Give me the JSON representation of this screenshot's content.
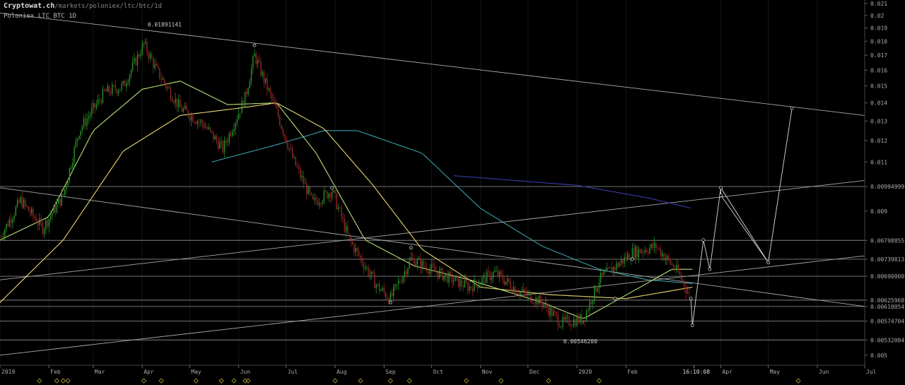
{
  "header": {
    "brand": "Cryptowat.ch",
    "path": "/markets/poloniex/ltc/btc/1d",
    "market": "Poloniex LTC BTC 1D"
  },
  "colors": {
    "up": "#2a9a2a",
    "down": "#9a2a2a",
    "ema_fast": "#b8e27a",
    "ema_mid": "#e8d870",
    "ema_slow": "#3aa0a8",
    "ema_long": "#3a3ab0",
    "drawing": "#c8c8c8",
    "axis_text": "#aaaaaa"
  },
  "chart_data": {
    "type": "candlestick",
    "scale": "log",
    "ylim": [
      0.0048,
      0.0213
    ],
    "x_range": [
      "2019-01-01",
      "2020-07-01"
    ],
    "y_ticks": [
      "0.021",
      "0.02",
      "0.019",
      "0.018",
      "0.017",
      "0.016",
      "0.015",
      "0.014",
      "0.013",
      "0.012",
      "0.011",
      "0.00994999",
      "0.009",
      "0.00798855",
      "0.00739813",
      "0.00690000",
      "0.00625968",
      "0.00610054",
      "0.00574704",
      "0.00532084",
      "0.005"
    ],
    "x_ticks": [
      {
        "label": "2019",
        "date": "2019-01-01"
      },
      {
        "label": "Feb",
        "date": "2019-02-01"
      },
      {
        "label": "Mar",
        "date": "2019-03-01"
      },
      {
        "label": "Apr",
        "date": "2019-04-01"
      },
      {
        "label": "May",
        "date": "2019-05-01"
      },
      {
        "label": "Jun",
        "date": "2019-06-01"
      },
      {
        "label": "Jul",
        "date": "2019-07-01"
      },
      {
        "label": "Aug",
        "date": "2019-08-01"
      },
      {
        "label": "Sep",
        "date": "2019-09-01"
      },
      {
        "label": "Oct",
        "date": "2019-10-01"
      },
      {
        "label": "Nov",
        "date": "2019-11-01"
      },
      {
        "label": "Dec",
        "date": "2019-12-01"
      },
      {
        "label": "2020",
        "date": "2020-01-01"
      },
      {
        "label": "Feb",
        "date": "2020-02-01"
      },
      {
        "label": "Apr",
        "date": "2020-04-01"
      },
      {
        "label": "May",
        "date": "2020-05-01"
      },
      {
        "label": "Jun",
        "date": "2020-06-01"
      },
      {
        "label": "Jul",
        "date": "2020-07-01"
      }
    ],
    "cursor_time": {
      "label": "16:10:08",
      "date": "2020-03-15"
    },
    "price_anchors": [
      {
        "date": "2019-01-01",
        "price": 0.0081
      },
      {
        "date": "2019-01-14",
        "price": 0.0094
      },
      {
        "date": "2019-01-28",
        "price": 0.0084
      },
      {
        "date": "2019-02-10",
        "price": 0.0096
      },
      {
        "date": "2019-02-20",
        "price": 0.0125
      },
      {
        "date": "2019-03-08",
        "price": 0.0146
      },
      {
        "date": "2019-03-20",
        "price": 0.015
      },
      {
        "date": "2019-04-02",
        "price": 0.0178
      },
      {
        "date": "2019-04-10",
        "price": 0.016
      },
      {
        "date": "2019-04-25",
        "price": 0.0137
      },
      {
        "date": "2019-05-10",
        "price": 0.0128
      },
      {
        "date": "2019-05-22",
        "price": 0.0116
      },
      {
        "date": "2019-06-05",
        "price": 0.0143
      },
      {
        "date": "2019-06-11",
        "price": 0.017
      },
      {
        "date": "2019-06-25",
        "price": 0.0135
      },
      {
        "date": "2019-07-06",
        "price": 0.011
      },
      {
        "date": "2019-07-18",
        "price": 0.0093
      },
      {
        "date": "2019-07-30",
        "price": 0.0098
      },
      {
        "date": "2019-08-10",
        "price": 0.008
      },
      {
        "date": "2019-08-28",
        "price": 0.0066
      },
      {
        "date": "2019-09-05",
        "price": 0.0063
      },
      {
        "date": "2019-09-18",
        "price": 0.0074
      },
      {
        "date": "2019-10-05",
        "price": 0.007
      },
      {
        "date": "2019-10-25",
        "price": 0.0066
      },
      {
        "date": "2019-11-10",
        "price": 0.007
      },
      {
        "date": "2019-11-25",
        "price": 0.0065
      },
      {
        "date": "2019-12-10",
        "price": 0.0062
      },
      {
        "date": "2019-12-22",
        "price": 0.0057
      },
      {
        "date": "2020-01-05",
        "price": 0.0058
      },
      {
        "date": "2020-01-15",
        "price": 0.0068
      },
      {
        "date": "2020-02-05",
        "price": 0.0076
      },
      {
        "date": "2020-02-20",
        "price": 0.0078
      },
      {
        "date": "2020-03-05",
        "price": 0.007
      },
      {
        "date": "2020-03-12",
        "price": 0.0064
      }
    ],
    "ema_fast_anchors": [
      {
        "date": "2019-01-01",
        "price": 0.008
      },
      {
        "date": "2019-02-01",
        "price": 0.0088
      },
      {
        "date": "2019-03-01",
        "price": 0.0125
      },
      {
        "date": "2019-04-01",
        "price": 0.0148
      },
      {
        "date": "2019-04-25",
        "price": 0.0153
      },
      {
        "date": "2019-05-25",
        "price": 0.0139
      },
      {
        "date": "2019-06-25",
        "price": 0.014
      },
      {
        "date": "2019-07-20",
        "price": 0.0114
      },
      {
        "date": "2019-08-20",
        "price": 0.008
      },
      {
        "date": "2019-09-20",
        "price": 0.0072
      },
      {
        "date": "2019-10-25",
        "price": 0.0068
      },
      {
        "date": "2019-12-10",
        "price": 0.0062
      },
      {
        "date": "2020-01-05",
        "price": 0.0058
      },
      {
        "date": "2020-02-10",
        "price": 0.0066
      },
      {
        "date": "2020-03-01",
        "price": 0.0071
      },
      {
        "date": "2020-03-14",
        "price": 0.0071
      }
    ],
    "ema_mid_anchors": [
      {
        "date": "2019-01-01",
        "price": 0.0062
      },
      {
        "date": "2019-02-10",
        "price": 0.008
      },
      {
        "date": "2019-03-20",
        "price": 0.0115
      },
      {
        "date": "2019-04-25",
        "price": 0.0133
      },
      {
        "date": "2019-06-01",
        "price": 0.0137
      },
      {
        "date": "2019-06-25",
        "price": 0.014
      },
      {
        "date": "2019-07-25",
        "price": 0.0126
      },
      {
        "date": "2019-08-25",
        "price": 0.01
      },
      {
        "date": "2019-09-25",
        "price": 0.0077
      },
      {
        "date": "2019-11-01",
        "price": 0.0066
      },
      {
        "date": "2019-12-15",
        "price": 0.0064
      },
      {
        "date": "2020-02-01",
        "price": 0.0063
      },
      {
        "date": "2020-03-14",
        "price": 0.0066
      }
    ],
    "ema_slow_anchors": [
      {
        "date": "2019-05-15",
        "price": 0.011
      },
      {
        "date": "2019-06-25",
        "price": 0.0118
      },
      {
        "date": "2019-07-25",
        "price": 0.0125
      },
      {
        "date": "2019-08-15",
        "price": 0.0125
      },
      {
        "date": "2019-09-25",
        "price": 0.0114
      },
      {
        "date": "2019-11-01",
        "price": 0.0091
      },
      {
        "date": "2019-12-10",
        "price": 0.0078
      },
      {
        "date": "2020-01-15",
        "price": 0.0071
      },
      {
        "date": "2020-02-15",
        "price": 0.0068
      },
      {
        "date": "2020-03-14",
        "price": 0.0067
      }
    ],
    "ema_long_anchors": [
      {
        "date": "2019-10-15",
        "price": 0.0104
      },
      {
        "date": "2020-01-01",
        "price": 0.01
      },
      {
        "date": "2020-02-15",
        "price": 0.0095
      },
      {
        "date": "2020-03-14",
        "price": 0.0091
      }
    ],
    "horizontal_levels": [
      "0.00994999",
      "0.00798855",
      "0.00739813",
      "0.00690000",
      "0.00625968",
      "0.00610054",
      "0.00574704",
      "0.00532084"
    ],
    "trendlines": [
      {
        "from": {
          "date": "2019-01-01",
          "price": 0.0202
        },
        "to": {
          "date": "2020-07-01",
          "price": 0.0133
        }
      },
      {
        "from": {
          "date": "2019-01-01",
          "price": 0.0099
        },
        "to": {
          "date": "2020-07-01",
          "price": 0.0061
        }
      },
      {
        "from": {
          "date": "2019-01-01",
          "price": 0.0068
        },
        "to": {
          "date": "2020-07-01",
          "price": 0.0102
        }
      },
      {
        "from": {
          "date": "2019-01-01",
          "price": 0.005
        },
        "to": {
          "date": "2020-07-01",
          "price": 0.0075
        }
      }
    ],
    "projection_path": [
      {
        "date": "2020-03-13",
        "price": 0.0063
      },
      {
        "date": "2020-03-14",
        "price": 0.00565
      },
      {
        "date": "2020-03-21",
        "price": 0.008
      },
      {
        "date": "2020-03-25",
        "price": 0.0071
      },
      {
        "date": "2020-04-01",
        "price": 0.0099
      },
      {
        "date": "2020-04-01",
        "price": 0.0096
      },
      {
        "date": "2020-05-01",
        "price": 0.0073
      },
      {
        "date": "2020-05-16",
        "price": 0.0137
      }
    ],
    "projection_path_2": [
      {
        "date": "2020-04-01",
        "price": 0.0099
      },
      {
        "date": "2020-05-01",
        "price": 0.0073
      }
    ],
    "annotations": [
      {
        "text": "0.01891141",
        "date": "2019-04-03",
        "price": 0.01891141
      },
      {
        "text": "0.00546200",
        "date": "2019-12-22",
        "price": 0.005462
      }
    ],
    "markers": [
      {
        "date": "2019-06-11",
        "price": 0.0177
      },
      {
        "date": "2019-07-30",
        "price": 0.0099
      },
      {
        "date": "2019-09-05",
        "price": 0.0062
      },
      {
        "date": "2019-09-18",
        "price": 0.00775
      },
      {
        "date": "2020-01-25",
        "price": 0.0063
      },
      {
        "date": "2020-02-05",
        "price": 0.0074
      }
    ],
    "event_markers": [
      "2019-01-26",
      "2019-02-06",
      "2019-02-10",
      "2019-02-13",
      "2019-04-02",
      "2019-04-13",
      "2019-05-05",
      "2019-05-21",
      "2019-05-29",
      "2019-06-05",
      "2019-06-07",
      "2019-08-01",
      "2019-08-17",
      "2019-09-05",
      "2019-09-17",
      "2019-10-23",
      "2019-11-14",
      "2019-12-14",
      "2020-01-15",
      "2020-05-20"
    ]
  }
}
